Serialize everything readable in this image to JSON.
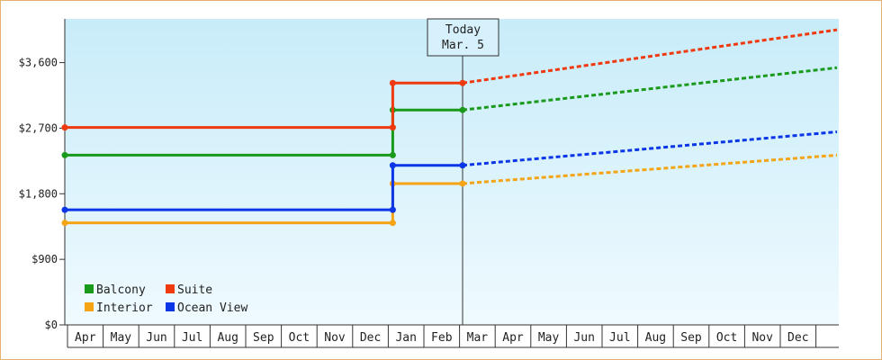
{
  "chart_data": {
    "type": "line",
    "title": "",
    "xlabel": "",
    "ylabel": "",
    "ylim": [
      0,
      4200
    ],
    "y_ticks": [
      "$0",
      "$900",
      "$1,800",
      "$2,700",
      "$3,600"
    ],
    "y_tick_values": [
      0,
      900,
      1800,
      2700,
      3600
    ],
    "grid": false,
    "legend_position": "bottom-left",
    "categories": [
      "Apr",
      "May",
      "Jun",
      "Jul",
      "Aug",
      "Sep",
      "Oct",
      "Nov",
      "Dec",
      "Jan",
      "Feb",
      "Mar",
      "Apr",
      "May",
      "Jun",
      "Jul",
      "Aug",
      "Sep",
      "Oct",
      "Nov",
      "Dec"
    ],
    "today_marker": {
      "line1": "Today",
      "line2": "Mar. 5"
    },
    "series": [
      {
        "name": "Balcony",
        "color": "#1a9a1a",
        "historical": [
          {
            "month": "Apr",
            "value": 2330
          },
          {
            "month": "Jan",
            "value": 2330
          },
          {
            "month": "Jan",
            "value": 2950
          },
          {
            "month": "Mar",
            "value": 2950
          }
        ],
        "forecast": [
          {
            "month": "Mar",
            "value": 2950
          },
          {
            "month": "Dec",
            "value": 3530
          }
        ]
      },
      {
        "name": "Suite",
        "color": "#ee3a0e",
        "historical": [
          {
            "month": "Apr",
            "value": 2710
          },
          {
            "month": "Jan",
            "value": 2710
          },
          {
            "month": "Jan",
            "value": 3320
          },
          {
            "month": "Mar",
            "value": 3320
          }
        ],
        "forecast": [
          {
            "month": "Mar",
            "value": 3320
          },
          {
            "month": "Dec",
            "value": 4050
          }
        ]
      },
      {
        "name": "Interior",
        "color": "#f5a416",
        "historical": [
          {
            "month": "Apr",
            "value": 1400
          },
          {
            "month": "Jan",
            "value": 1400
          },
          {
            "month": "Jan",
            "value": 1940
          },
          {
            "month": "Mar",
            "value": 1940
          }
        ],
        "forecast": [
          {
            "month": "Mar",
            "value": 1940
          },
          {
            "month": "Dec",
            "value": 2330
          }
        ]
      },
      {
        "name": "Ocean View",
        "color": "#0a36e8",
        "historical": [
          {
            "month": "Apr",
            "value": 1580
          },
          {
            "month": "Jan",
            "value": 1580
          },
          {
            "month": "Jan",
            "value": 2190
          },
          {
            "month": "Mar",
            "value": 2190
          }
        ],
        "forecast": [
          {
            "month": "Mar",
            "value": 2190
          },
          {
            "month": "Dec",
            "value": 2650
          }
        ]
      }
    ]
  }
}
